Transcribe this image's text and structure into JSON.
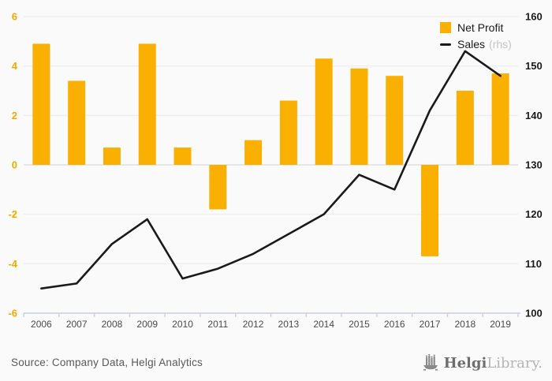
{
  "chart_data": {
    "type": "bar",
    "title": "",
    "categories": [
      "2006",
      "2007",
      "2008",
      "2009",
      "2010",
      "2011",
      "2012",
      "2013",
      "2014",
      "2015",
      "2016",
      "2017",
      "2018",
      "2019"
    ],
    "series": [
      {
        "name": "Net Profit",
        "kind": "bar",
        "axis": "left",
        "values": [
          4.9,
          3.4,
          0.7,
          4.9,
          0.7,
          -1.8,
          1.0,
          2.6,
          4.3,
          3.9,
          3.6,
          -3.7,
          3.0,
          3.7
        ]
      },
      {
        "name": "Sales",
        "kind": "line",
        "axis": "right",
        "values": [
          105,
          106,
          114,
          119,
          107,
          109,
          112,
          116,
          120,
          128,
          125,
          141,
          153,
          148
        ]
      }
    ],
    "left_axis": {
      "min": -6,
      "max": 6,
      "ticks": [
        6,
        4,
        2,
        0,
        -2,
        -4,
        -6
      ]
    },
    "right_axis": {
      "min": 100,
      "max": 160,
      "ticks": [
        160,
        150,
        140,
        130,
        120,
        110,
        100
      ]
    },
    "grid": true,
    "legend_position": "top-right"
  },
  "legend": {
    "sales_suffix": "(rhs)"
  },
  "footer": {
    "source": "Source: Company Data, Helgi Analytics",
    "logo_bold": "Helgi",
    "logo_light": "Library."
  },
  "colors": {
    "bar": "#F9B000",
    "line": "#1A1A1A",
    "left_axis_label": "#F5A800",
    "right_axis_label": "#1A1A1A",
    "x_axis_label": "#4A4A4A",
    "grid_line": "#ECECEC",
    "zero_line": "#DBDBDB",
    "axis_line": "#C6D0E0",
    "background": "#FAFAFA",
    "logo_gray": "#8A8A8A"
  }
}
